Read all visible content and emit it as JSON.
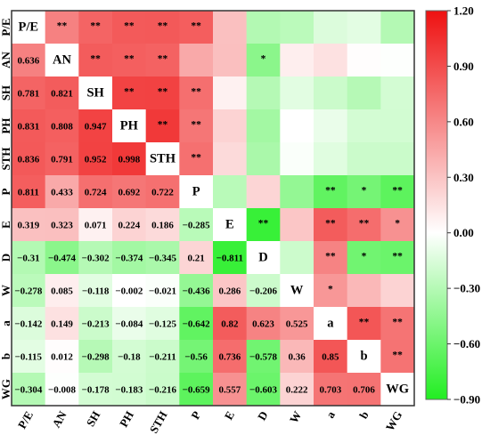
{
  "chart_data": {
    "type": "heatmap",
    "title": "",
    "variables": [
      "P/E",
      "AN",
      "SH",
      "PH",
      "STH",
      "P",
      "E",
      "D",
      "W",
      "a",
      "b",
      "WG"
    ],
    "lower_triangle": [
      [],
      [
        0.636
      ],
      [
        0.781,
        0.821
      ],
      [
        0.831,
        0.808,
        0.947
      ],
      [
        0.836,
        0.791,
        0.952,
        0.998
      ],
      [
        0.811,
        0.433,
        0.724,
        0.692,
        0.722
      ],
      [
        0.319,
        0.323,
        0.071,
        0.224,
        0.186,
        -0.285
      ],
      [
        -0.31,
        -0.474,
        -0.302,
        -0.374,
        -0.345,
        0.21,
        -0.811
      ],
      [
        -0.278,
        0.085,
        -0.118,
        -0.002,
        -0.021,
        -0.436,
        0.286,
        -0.206
      ],
      [
        -0.142,
        0.149,
        -0.213,
        -0.084,
        -0.125,
        -0.642,
        0.82,
        0.623,
        0.525
      ],
      [
        -0.115,
        0.012,
        -0.298,
        -0.18,
        -0.211,
        -0.56,
        0.736,
        -0.578,
        0.36,
        0.85
      ],
      [
        -0.304,
        -0.008,
        -0.178,
        -0.183,
        -0.216,
        -0.659,
        0.557,
        -0.603,
        0.222,
        0.703,
        0.706
      ]
    ],
    "significance_upper": [
      [
        "",
        "**",
        "**",
        "**",
        "**",
        "**",
        "",
        "",
        "",
        "",
        "",
        ""
      ],
      [
        "",
        "",
        "**",
        "**",
        "**",
        "",
        "",
        "*",
        "",
        "",
        "",
        ""
      ],
      [
        "",
        "",
        "",
        "**",
        "**",
        "**",
        "",
        "",
        "",
        "",
        "",
        ""
      ],
      [
        "",
        "",
        "",
        "",
        "**",
        "**",
        "",
        "",
        "",
        "",
        "",
        ""
      ],
      [
        "",
        "",
        "",
        "",
        "",
        "**",
        "",
        "",
        "",
        "",
        "",
        ""
      ],
      [
        "",
        "",
        "",
        "",
        "",
        "",
        "",
        "",
        "",
        "**",
        "*",
        "**"
      ],
      [
        "",
        "",
        "",
        "",
        "",
        "",
        "",
        "**",
        "",
        "**",
        "**",
        "*"
      ],
      [
        "",
        "",
        "",
        "",
        "",
        "",
        "",
        "",
        "",
        "**",
        "*",
        "**"
      ],
      [
        "",
        "",
        "",
        "",
        "",
        "",
        "",
        "",
        "",
        "*",
        "",
        ""
      ],
      [
        "",
        "",
        "",
        "",
        "",
        "",
        "",
        "",
        "",
        "",
        "**",
        "**"
      ],
      [
        "",
        "",
        "",
        "",
        "",
        "",
        "",
        "",
        "",
        "",
        "",
        "**"
      ],
      [
        "",
        "",
        "",
        "",
        "",
        "",
        "",
        "",
        "",
        "",
        "",
        ""
      ]
    ],
    "colorbar": {
      "min": -0.9,
      "max": 1.2,
      "center": 0,
      "ticks": [
        1.2,
        0.9,
        0.6,
        0.3,
        0.0,
        -0.3,
        -0.6,
        -0.9
      ],
      "tick_labels": [
        "1.20",
        "0.90",
        "0.60",
        "0.30",
        "0.00",
        "−0.30",
        "−0.60",
        "−0.90"
      ],
      "colors": {
        "negative": "#22ee22",
        "zero": "#ffffff",
        "positive": "#ee1111"
      }
    },
    "xlabel": "",
    "ylabel": "",
    "legend_position": "right"
  }
}
